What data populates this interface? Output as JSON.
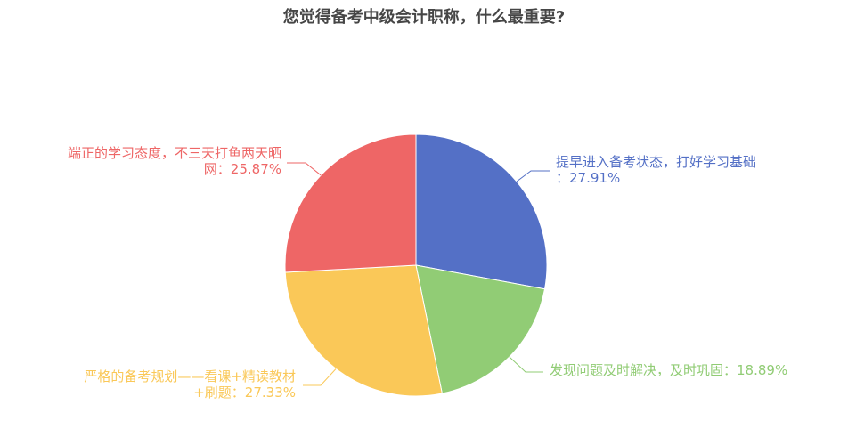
{
  "chart_data": {
    "type": "pie",
    "title": "您觉得备考中级会计职称，什么最重要?",
    "slices": [
      {
        "label": [
          "提早进入备考状态，打好学习基础",
          "：27.91%"
        ],
        "value": 27.91,
        "color": "#5470c6"
      },
      {
        "label": [
          "发现问题及时解决，及时巩固：18.89%"
        ],
        "value": 18.89,
        "color": "#91cc75"
      },
      {
        "label": [
          "严格的备考规划——看课+精读教材",
          "+刷题：27.33%"
        ],
        "value": 27.33,
        "color": "#fac858"
      },
      {
        "label": [
          "端正的学习态度，不三天打鱼两天晒",
          "网：25.87%"
        ],
        "value": 25.87,
        "color": "#ee6666"
      }
    ],
    "start_angle": "top",
    "direction": "clockwise"
  }
}
